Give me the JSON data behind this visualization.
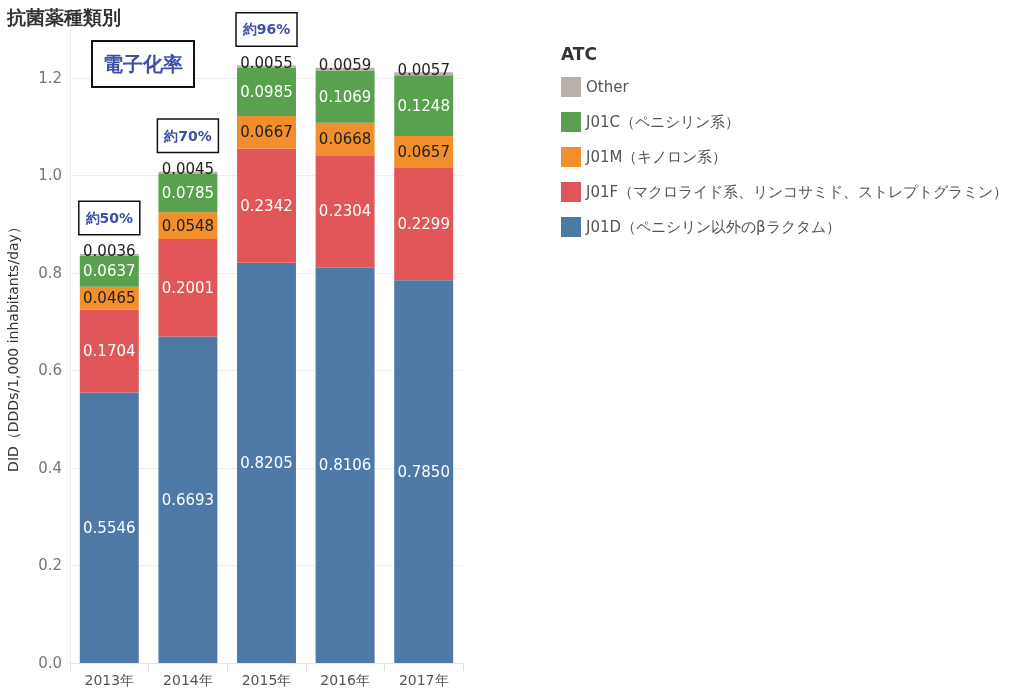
{
  "chart_data": {
    "type": "bar",
    "title": "抗菌薬種類別",
    "ylabel": "DID（DDDs/1,000 inhabitants/day）",
    "legend_title": "ATC",
    "categories": [
      "2013年",
      "2014年",
      "2015年",
      "2016年",
      "2017年"
    ],
    "stacked": true,
    "series": [
      {
        "name": "J01D（ペニシリン以外のβラクタム）",
        "color": "#4e79a7",
        "values": [
          0.5546,
          0.6693,
          0.8205,
          0.8106,
          0.785
        ],
        "value_labels": [
          "0.5546",
          "0.6693",
          "0.8205",
          "0.8106",
          "0.7850"
        ]
      },
      {
        "name": "J01F（マクロライド系、リンコサミド、ストレプトグラミン）",
        "color": "#e15759",
        "values": [
          0.1704,
          0.2001,
          0.2342,
          0.2304,
          0.2299
        ],
        "value_labels": [
          "0.1704",
          "0.2001",
          "0.2342",
          "0.2304",
          "0.2299"
        ]
      },
      {
        "name": "J01M（キノロン系）",
        "color": "#f28e2b",
        "values": [
          0.0465,
          0.0548,
          0.0667,
          0.0668,
          0.0657
        ],
        "value_labels": [
          "0.0465",
          "0.0548",
          "0.0667",
          "0.0668",
          "0.0657"
        ]
      },
      {
        "name": "J01C（ペニシリン系）",
        "color": "#59a14f",
        "values": [
          0.0637,
          0.0785,
          0.0985,
          0.1069,
          0.1248
        ],
        "value_labels": [
          "0.0637",
          "0.0785",
          "0.0985",
          "0.1069",
          "0.1248"
        ]
      },
      {
        "name": "Other",
        "color": "#bab0ac",
        "values": [
          0.0036,
          0.0045,
          0.0055,
          0.0059,
          0.0057
        ],
        "value_labels": [
          "0.0036",
          "0.0045",
          "0.0055",
          "0.0059",
          "0.0057"
        ]
      }
    ],
    "ylim": [
      0,
      1.3
    ],
    "yticks": [
      {
        "value": 0,
        "label": "0.0"
      },
      0.2,
      0.4,
      0.6,
      0.8,
      {
        "value": 1,
        "label": "1.0"
      },
      1.2
    ],
    "grid": "y",
    "legend": "top right",
    "annotations": [
      "電子化率",
      "約50%",
      "約70%",
      "約96%"
    ]
  }
}
